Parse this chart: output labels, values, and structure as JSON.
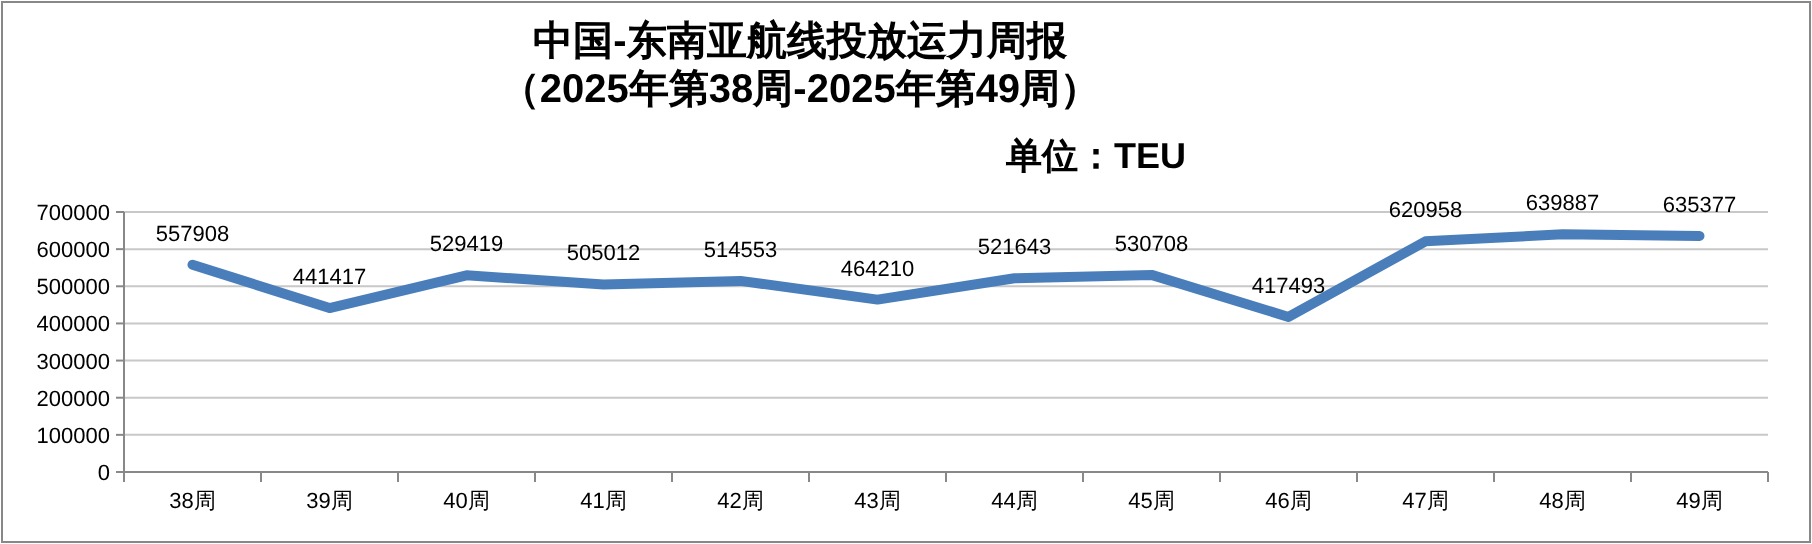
{
  "chart_data": {
    "type": "line",
    "title": "中国-东南亚航线投放运力周报",
    "subtitle": "（2025年第38周-2025年第49周）",
    "annotations": [
      "单位：TEU"
    ],
    "categories": [
      "38周",
      "39周",
      "40周",
      "41周",
      "42周",
      "43周",
      "44周",
      "45周",
      "46周",
      "47周",
      "48周",
      "49周"
    ],
    "series": [
      {
        "color": "#4a7ebb",
        "values": [
          557908,
          441417,
          529419,
          505012,
          514553,
          464210,
          521643,
          530708,
          417493,
          620958,
          639887,
          635377
        ]
      }
    ],
    "ylim": [
      0,
      700000
    ],
    "yticks": [
      0,
      100000,
      200000,
      300000,
      400000,
      500000,
      600000,
      700000
    ],
    "grid": "y",
    "data_labels": true,
    "marker": "none",
    "line_style": "solid"
  }
}
